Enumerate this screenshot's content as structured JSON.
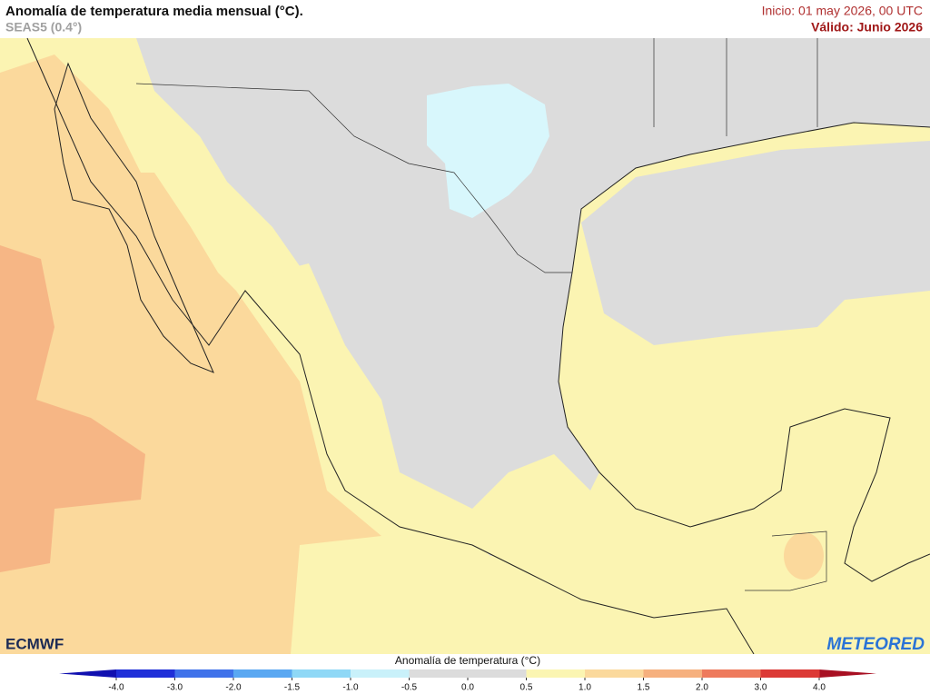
{
  "header": {
    "title": "Anomalía de temperatura media mensual (°C).",
    "subtitle": "SEAS5 (0.4°)",
    "init": "Inicio: 01 may 2026, 00 UTC",
    "valid": "Válido: Junio 2026"
  },
  "logos": {
    "left": "ECMWF",
    "right": "METEORED"
  },
  "colorbar": {
    "label": "Anomalía de temperatura (°C)",
    "ticks": [
      {
        "value": -4,
        "label": "-4.0"
      },
      {
        "value": -3,
        "label": "-3.0"
      },
      {
        "value": -2,
        "label": "-2.0"
      },
      -1.5,
      {
        "value": -1,
        "label": "-1.0"
      },
      -0.5,
      {
        "value": 0,
        "label": "0.0"
      },
      0.5,
      {
        "value": 1,
        "label": "1.0"
      },
      1.5,
      {
        "value": 2,
        "label": "2.0"
      },
      {
        "value": 3,
        "label": "3.0"
      },
      {
        "value": 4,
        "label": "4.0"
      }
    ],
    "colors": [
      "#1f2fd8",
      "#3f72ea",
      "#5aa8f2",
      "#8fd8f6",
      "#c9f1fa",
      "#dcdcdc",
      "#dcdcdc",
      "#fbf5b2",
      "#fbd99c",
      "#f6b07e",
      "#ee7a5c",
      "#dc3a36"
    ],
    "under_color": "#1010b0",
    "over_color": "#a80f22"
  }
}
